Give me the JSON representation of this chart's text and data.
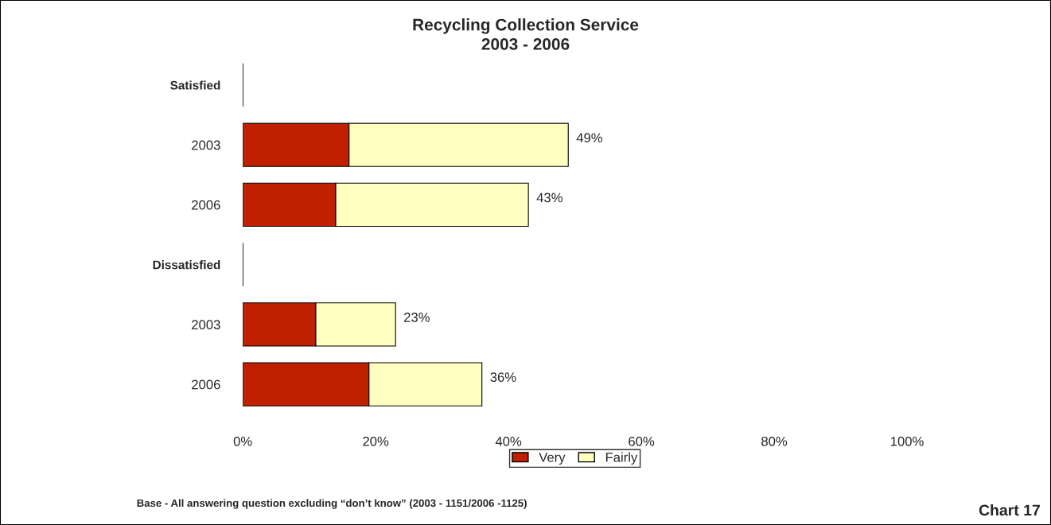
{
  "chart_data": {
    "type": "bar",
    "orientation": "horizontal",
    "stacked": true,
    "title": "Recycling Collection Service",
    "subtitle": "2003 - 2006",
    "categories": [
      "Satisfied",
      "2003",
      "2006",
      "Dissatisfied",
      "2003",
      "2006"
    ],
    "series": [
      {
        "name": "Very",
        "color": "#c02000",
        "values": [
          null,
          16,
          14,
          null,
          11,
          19
        ]
      },
      {
        "name": "Fairly",
        "color": "#ffffc0",
        "values": [
          null,
          33,
          29,
          null,
          12,
          17
        ]
      }
    ],
    "totals": [
      null,
      "49%",
      "43%",
      null,
      "23%",
      "36%"
    ],
    "xlim": [
      0,
      100
    ],
    "xticks": [
      {
        "value": 0,
        "label": "0%"
      },
      {
        "value": 20,
        "label": "20%"
      },
      {
        "value": 40,
        "label": "40%"
      },
      {
        "value": 60,
        "label": "60%"
      },
      {
        "value": 80,
        "label": "80%"
      },
      {
        "value": 100,
        "label": "100%"
      }
    ],
    "grid": false,
    "legend": "bottom",
    "annotations": [
      "Base - All answering question excluding “don’t know” (2003 - 1151/2006 -1125)",
      "Chart 17"
    ]
  }
}
